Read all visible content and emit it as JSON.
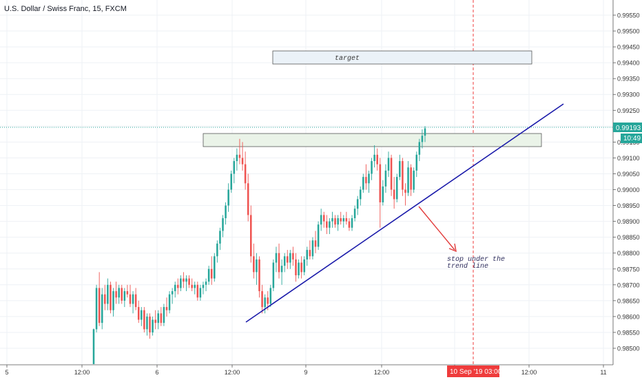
{
  "header": {
    "title": "U.S. Dollar / Swiss Franc, 15, FXCM"
  },
  "colors": {
    "up": "#26a69a",
    "down": "#ef5350",
    "trendline": "#1a1aaa",
    "arrow": "#e23a3a",
    "vline": "#ef3b3b",
    "price_line": "#26a69a",
    "grid": "#eef1f5",
    "zone_fill": "#eaf3e8",
    "zone_stroke": "#555555",
    "target_fill": "#ebf2f8",
    "target_stroke": "#555555"
  },
  "annotations": {
    "target_label": "target",
    "stop_label_line1": "stop under the",
    "stop_label_line2": "trend line"
  },
  "price_axis": {
    "last_price": "0.99193",
    "countdown": "10:49",
    "hidden_label": "0.99150"
  },
  "time_axis": {
    "highlight_label": "10 Sep '19  03:00"
  },
  "chart_data": {
    "type": "candlestick",
    "symbol": "U.S. Dollar / Swiss Franc, 15, FXCM",
    "y_ticks": [
      "0.99550",
      "0.99500",
      "0.99450",
      "0.99400",
      "0.99350",
      "0.99300",
      "0.99250",
      "0.99200",
      "0.99150",
      "0.99100",
      "0.99050",
      "0.99000",
      "0.98950",
      "0.98900",
      "0.98850",
      "0.98800",
      "0.98750",
      "0.98700",
      "0.98650",
      "0.98600",
      "0.98550",
      "0.98500"
    ],
    "x_ticks": [
      "5",
      "12:00",
      "6",
      "12:00",
      "9",
      "12:00",
      "10",
      "12:00",
      "11"
    ],
    "ylim": [
      0.9845,
      0.9958
    ],
    "grid": true,
    "last_price": 0.99193,
    "candles_ohlc_15m": [
      [
        0.9845,
        0.98562,
        0.9845,
        0.9856
      ],
      [
        0.9856,
        0.987,
        0.9855,
        0.9869
      ],
      [
        0.9869,
        0.9874,
        0.9857,
        0.9858
      ],
      [
        0.9858,
        0.9869,
        0.9856,
        0.9867
      ],
      [
        0.9867,
        0.987,
        0.9862,
        0.9864
      ],
      [
        0.9864,
        0.9872,
        0.9862,
        0.987
      ],
      [
        0.987,
        0.9871,
        0.9861,
        0.9862
      ],
      [
        0.9862,
        0.9869,
        0.986,
        0.9868
      ],
      [
        0.9868,
        0.9871,
        0.9864,
        0.9866
      ],
      [
        0.9866,
        0.987,
        0.9864,
        0.9869
      ],
      [
        0.9869,
        0.987,
        0.9864,
        0.9865
      ],
      [
        0.9865,
        0.9869,
        0.9863,
        0.9868
      ],
      [
        0.9868,
        0.987,
        0.9866,
        0.9867
      ],
      [
        0.9867,
        0.987,
        0.9863,
        0.9864
      ],
      [
        0.9864,
        0.9868,
        0.9861,
        0.9867
      ],
      [
        0.9867,
        0.9869,
        0.9862,
        0.9863
      ],
      [
        0.9863,
        0.9865,
        0.9858,
        0.9859
      ],
      [
        0.9859,
        0.9863,
        0.9857,
        0.9862
      ],
      [
        0.9862,
        0.9863,
        0.9855,
        0.9856
      ],
      [
        0.9856,
        0.9861,
        0.9854,
        0.986
      ],
      [
        0.986,
        0.9861,
        0.9853,
        0.9855
      ],
      [
        0.9855,
        0.986,
        0.9854,
        0.9859
      ],
      [
        0.9859,
        0.9862,
        0.9856,
        0.9858
      ],
      [
        0.9858,
        0.9862,
        0.9856,
        0.9861
      ],
      [
        0.9861,
        0.9863,
        0.9857,
        0.9858
      ],
      [
        0.9858,
        0.9864,
        0.9857,
        0.9863
      ],
      [
        0.9863,
        0.9866,
        0.986,
        0.9862
      ],
      [
        0.9862,
        0.9868,
        0.9861,
        0.9867
      ],
      [
        0.9867,
        0.9869,
        0.9864,
        0.9868
      ],
      [
        0.9868,
        0.9871,
        0.9866,
        0.987
      ],
      [
        0.987,
        0.9872,
        0.9867,
        0.9869
      ],
      [
        0.9869,
        0.9873,
        0.9868,
        0.9872
      ],
      [
        0.9872,
        0.9874,
        0.9869,
        0.9871
      ],
      [
        0.9871,
        0.9873,
        0.9868,
        0.9872
      ],
      [
        0.9872,
        0.9873,
        0.9869,
        0.987
      ],
      [
        0.987,
        0.9872,
        0.9868,
        0.9869
      ],
      [
        0.9869,
        0.9871,
        0.9867,
        0.987
      ],
      [
        0.987,
        0.9871,
        0.9865,
        0.9866
      ],
      [
        0.9866,
        0.987,
        0.9865,
        0.9869
      ],
      [
        0.9869,
        0.9871,
        0.9867,
        0.987
      ],
      [
        0.987,
        0.9872,
        0.9868,
        0.9871
      ],
      [
        0.9871,
        0.9876,
        0.987,
        0.9875
      ],
      [
        0.9875,
        0.9879,
        0.987,
        0.9872
      ],
      [
        0.9872,
        0.988,
        0.9871,
        0.9879
      ],
      [
        0.9879,
        0.9884,
        0.9877,
        0.9883
      ],
      [
        0.9883,
        0.9888,
        0.9881,
        0.9887
      ],
      [
        0.9887,
        0.9892,
        0.9885,
        0.9891
      ],
      [
        0.9891,
        0.9896,
        0.9889,
        0.9895
      ],
      [
        0.9895,
        0.9902,
        0.9893,
        0.99
      ],
      [
        0.99,
        0.9906,
        0.9899,
        0.9905
      ],
      [
        0.9905,
        0.991,
        0.9902,
        0.9909
      ],
      [
        0.9909,
        0.9913,
        0.9906,
        0.9911
      ],
      [
        0.9911,
        0.9916,
        0.9908,
        0.991
      ],
      [
        0.991,
        0.9915,
        0.9906,
        0.9908
      ],
      [
        0.9908,
        0.9912,
        0.99,
        0.9902
      ],
      [
        0.9902,
        0.9905,
        0.989,
        0.9892
      ],
      [
        0.9892,
        0.9895,
        0.9877,
        0.9879
      ],
      [
        0.9879,
        0.9883,
        0.9872,
        0.9874
      ],
      [
        0.9874,
        0.988,
        0.987,
        0.9878
      ],
      [
        0.9878,
        0.9879,
        0.9866,
        0.9868
      ],
      [
        0.9868,
        0.987,
        0.9861,
        0.9863
      ],
      [
        0.9863,
        0.9867,
        0.9861,
        0.9866
      ],
      [
        0.9866,
        0.9868,
        0.9862,
        0.9864
      ],
      [
        0.9864,
        0.987,
        0.9863,
        0.9869
      ],
      [
        0.9869,
        0.9878,
        0.9868,
        0.9877
      ],
      [
        0.9877,
        0.9882,
        0.9874,
        0.988
      ],
      [
        0.988,
        0.9883,
        0.9872,
        0.9874
      ],
      [
        0.9874,
        0.9878,
        0.987,
        0.9876
      ],
      [
        0.9876,
        0.988,
        0.9874,
        0.9879
      ],
      [
        0.9879,
        0.9881,
        0.9875,
        0.9877
      ],
      [
        0.9877,
        0.9881,
        0.9875,
        0.988
      ],
      [
        0.988,
        0.9882,
        0.9876,
        0.9878
      ],
      [
        0.9878,
        0.988,
        0.9871,
        0.9873
      ],
      [
        0.9873,
        0.9878,
        0.9872,
        0.9877
      ],
      [
        0.9877,
        0.9879,
        0.9872,
        0.9874
      ],
      [
        0.9874,
        0.9879,
        0.9873,
        0.9878
      ],
      [
        0.9878,
        0.9882,
        0.9876,
        0.9881
      ],
      [
        0.9881,
        0.9884,
        0.9878,
        0.9879
      ],
      [
        0.9879,
        0.9885,
        0.9878,
        0.9884
      ],
      [
        0.9884,
        0.9887,
        0.988,
        0.9882
      ],
      [
        0.9882,
        0.989,
        0.9881,
        0.9889
      ],
      [
        0.9889,
        0.9894,
        0.9887,
        0.9892
      ],
      [
        0.9892,
        0.9893,
        0.9888,
        0.989
      ],
      [
        0.989,
        0.9892,
        0.9886,
        0.9888
      ],
      [
        0.9888,
        0.9891,
        0.9886,
        0.989
      ],
      [
        0.989,
        0.9893,
        0.9888,
        0.9891
      ],
      [
        0.9891,
        0.9892,
        0.9888,
        0.9889
      ],
      [
        0.9889,
        0.9892,
        0.9887,
        0.9891
      ],
      [
        0.9891,
        0.9893,
        0.9889,
        0.989
      ],
      [
        0.989,
        0.9892,
        0.9888,
        0.9891
      ],
      [
        0.9891,
        0.9893,
        0.9889,
        0.989
      ],
      [
        0.989,
        0.9891,
        0.9887,
        0.9888
      ],
      [
        0.9888,
        0.9892,
        0.9887,
        0.9891
      ],
      [
        0.9891,
        0.9895,
        0.989,
        0.9894
      ],
      [
        0.9894,
        0.9898,
        0.9892,
        0.9897
      ],
      [
        0.9897,
        0.9901,
        0.9895,
        0.99
      ],
      [
        0.99,
        0.9905,
        0.9899,
        0.9904
      ],
      [
        0.9904,
        0.9908,
        0.99,
        0.9902
      ],
      [
        0.9902,
        0.9906,
        0.9899,
        0.9905
      ],
      [
        0.9905,
        0.991,
        0.9903,
        0.9909
      ],
      [
        0.9909,
        0.9914,
        0.9907,
        0.9911
      ],
      [
        0.9911,
        0.9913,
        0.9906,
        0.9908
      ],
      [
        0.9908,
        0.991,
        0.9888,
        0.9896
      ],
      [
        0.9896,
        0.9903,
        0.9895,
        0.9901
      ],
      [
        0.9901,
        0.9908,
        0.9899,
        0.9906
      ],
      [
        0.9906,
        0.9912,
        0.9904,
        0.991
      ],
      [
        0.991,
        0.9911,
        0.9898,
        0.99
      ],
      [
        0.99,
        0.9904,
        0.9894,
        0.9897
      ],
      [
        0.9897,
        0.9905,
        0.9896,
        0.9904
      ],
      [
        0.9904,
        0.9911,
        0.9903,
        0.9909
      ],
      [
        0.9909,
        0.991,
        0.9898,
        0.99
      ],
      [
        0.99,
        0.9902,
        0.9895,
        0.9899
      ],
      [
        0.9899,
        0.9909,
        0.9898,
        0.9907
      ],
      [
        0.9907,
        0.9908,
        0.9898,
        0.99
      ],
      [
        0.99,
        0.9907,
        0.9899,
        0.9906
      ],
      [
        0.9906,
        0.9912,
        0.9904,
        0.9911
      ],
      [
        0.9911,
        0.9916,
        0.9909,
        0.9915
      ],
      [
        0.9915,
        0.9919,
        0.9913,
        0.9917
      ],
      [
        0.9917,
        0.992,
        0.9915,
        0.99193
      ]
    ]
  }
}
